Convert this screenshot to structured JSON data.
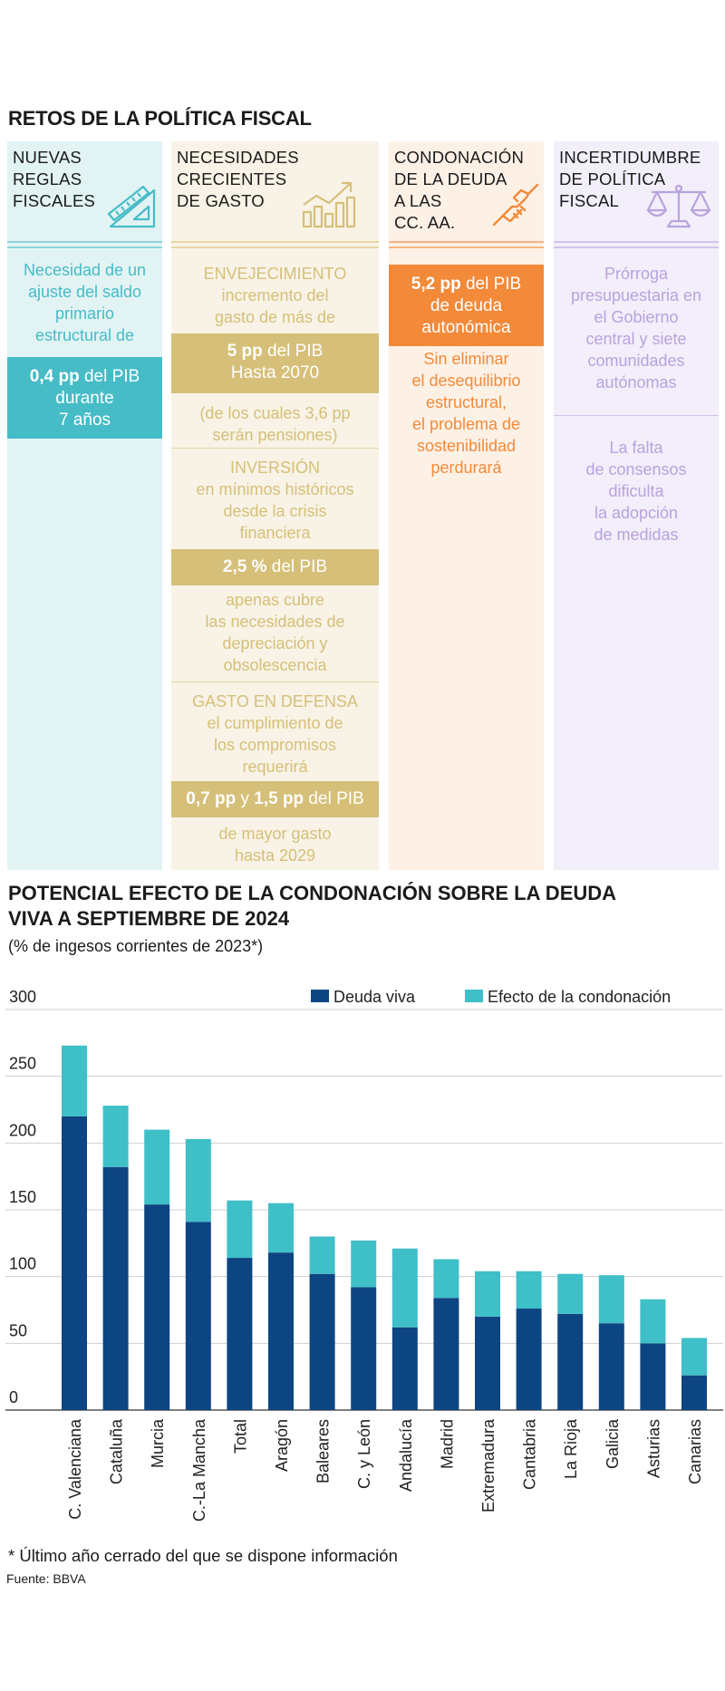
{
  "infographic": {
    "title": "RETOS DE LA POLÍTICA FISCAL",
    "columns": [
      {
        "id": "reglas",
        "header": [
          "NUEVAS",
          "REGLAS",
          "FISCALES"
        ],
        "icon": "ruler-triangle-icon",
        "bg": "#e2f3f4",
        "accent": "#46bcc7",
        "text1": [
          "Necesidad de un",
          "ajuste del saldo",
          "primario",
          "estructural de"
        ],
        "band1": {
          "bold": "0,4 pp",
          "rest": " del PIB",
          "lines": [
            "durante",
            "7 años"
          ]
        }
      },
      {
        "id": "gasto",
        "header": [
          "NECESIDADES",
          "CRECIENTES",
          "DE GASTO"
        ],
        "icon": "growth-chart-icon",
        "bg": "#f8f3e6",
        "accent": "#d6bf78",
        "s1": {
          "heading": "ENVEJECIMIENTO",
          "lines": [
            "incremento del",
            "gasto de más de"
          ],
          "band_bold": "5 pp",
          "band_rest": " del PIB",
          "band_line2": "Hasta 2070",
          "after": [
            "(de los cuales 3,6 pp",
            "serán pensiones)"
          ]
        },
        "s2": {
          "heading": "INVERSIÓN",
          "lines": [
            "en mínimos históricos",
            "desde la crisis",
            "financiera"
          ],
          "band_bold": "2,5 %",
          "band_rest": " del PIB",
          "after": [
            "apenas cubre",
            "las necesidades de",
            "depreciación y",
            "obsolescencia"
          ]
        },
        "s3": {
          "heading": "GASTO EN DEFENSA",
          "lines": [
            "el cumplimiento de",
            "los compromisos",
            "requerirá"
          ],
          "band_bold1": "0,7 pp",
          "band_mid": " y ",
          "band_bold2": "1,5 pp",
          "band_rest": " del PIB",
          "after": [
            "de mayor gasto",
            "hasta 2029"
          ]
        }
      },
      {
        "id": "condonacion",
        "header": [
          "CONDONACIÓN",
          "DE LA DEUDA",
          "A LAS",
          "CC. AA."
        ],
        "icon": "handshake-icon",
        "bg": "#fdf1e6",
        "accent": "#f28a3a",
        "band1": {
          "bold": "5,2 pp",
          "rest": " del PIB",
          "lines": [
            "de deuda",
            "autonómica"
          ]
        },
        "text1": [
          "Sin eliminar",
          "el desequilibrio",
          "estructural,",
          "el problema de",
          "sostenibilidad",
          "perdurará"
        ]
      },
      {
        "id": "incertidumbre",
        "header": [
          "INCERTIDUMBRE",
          "DE POLÍTICA",
          "FISCAL"
        ],
        "icon": "scales-icon",
        "bg": "#f2eefa",
        "accent": "#b9a3dd",
        "text1": [
          "Prórroga",
          "presupuestaria en",
          "el Gobierno",
          "central y siete",
          "comunidades",
          "autónomas"
        ],
        "text2": [
          "La falta",
          "de consensos",
          "dificulta",
          "la adopción",
          "de medidas"
        ]
      }
    ]
  },
  "chart_section": {
    "title_line1": "POTENCIAL EFECTO DE LA CONDONACIÓN SOBRE LA DEUDA",
    "title_line2": "VIVA A SEPTIEMBRE DE 2024",
    "subtitle": "(% de ingesos corrientes de 2023*)",
    "footnote": "* Último año cerrado del que se dispone información",
    "source": "Fuente: BBVA"
  },
  "chart_data": {
    "type": "bar",
    "stacked": true,
    "categories": [
      "C. Valenciana",
      "Cataluña",
      "Murcia",
      "C.-La Mancha",
      "Total",
      "Aragón",
      "Baleares",
      "C. y León",
      "Andalucía",
      "Madrid",
      "Extremadura",
      "Cantabria",
      "La Rioja",
      "Galicia",
      "Asturias",
      "Canarias"
    ],
    "series": [
      {
        "name": "Deuda viva",
        "color": "#0d4582",
        "values": [
          220,
          182,
          154,
          141,
          114,
          118,
          102,
          92,
          62,
          84,
          70,
          76,
          72,
          65,
          50,
          26
        ]
      },
      {
        "name": "Efecto de la condonación",
        "color": "#3fbfc7",
        "values": [
          53,
          46,
          56,
          62,
          43,
          37,
          28,
          35,
          59,
          29,
          34,
          28,
          30,
          36,
          33,
          28
        ]
      }
    ],
    "ylim": [
      0,
      300
    ],
    "yticks": [
      0,
      50,
      100,
      150,
      200,
      250,
      300
    ],
    "grid": true,
    "legend": "top-right"
  }
}
